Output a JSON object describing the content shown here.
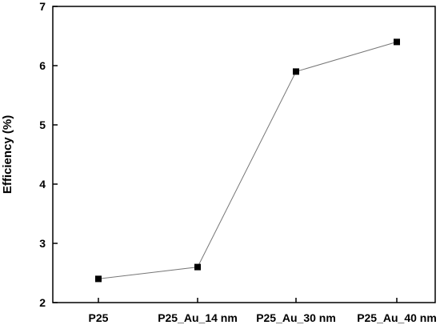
{
  "chart_data": {
    "type": "line",
    "title": "",
    "xlabel": "",
    "ylabel": "Efficiency (%)",
    "categories": [
      "P25",
      "P25_Au_14 nm",
      "P25_Au_30 nm",
      "P25_Au_40 nm"
    ],
    "series": [
      {
        "values": [
          2.4,
          2.6,
          5.9,
          6.4
        ],
        "marker": "square",
        "line_color": "#777777",
        "marker_color": "#000000"
      }
    ],
    "ylim": [
      2,
      7
    ],
    "yticks": [
      "2",
      "3",
      "4",
      "5",
      "6",
      "7"
    ],
    "grid": false,
    "legend": "none"
  }
}
